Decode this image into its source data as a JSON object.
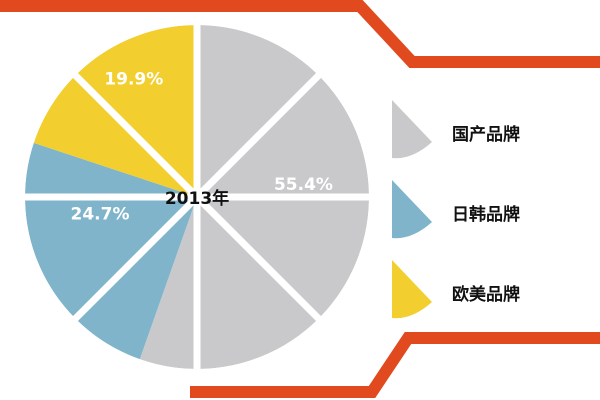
{
  "chart_data": {
    "type": "pie",
    "title": "2013年",
    "categories": [
      "国产品牌",
      "日韩品牌",
      "欧美品牌"
    ],
    "values": [
      55.4,
      24.7,
      19.9
    ],
    "value_labels": [
      "55.4%",
      "24.7%",
      "19.9%"
    ],
    "colors": [
      "#c9c9cb",
      "#7fb4cb",
      "#f2cf2e"
    ]
  }
}
